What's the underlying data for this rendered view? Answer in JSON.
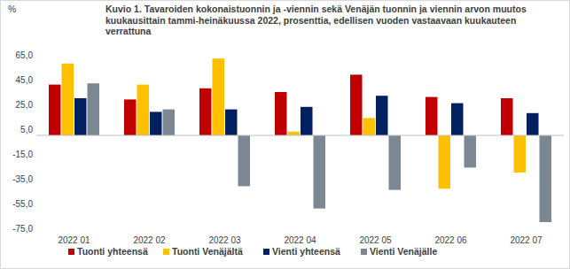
{
  "chart_data": {
    "type": "bar",
    "title": "Kuvio 1. Tavaroiden kokonaistuonnin ja -viennin sekä Venäjän tuonnin ja viennin arvon muutos kuukausittain tammi-heinäkuussa 2022, prosenttia, edellisen vuoden vastaavaan kuukauteen verrattuna",
    "y_label": "%",
    "categories": [
      "2022 01",
      "2022 02",
      "2022 03",
      "2022 04",
      "2022 05",
      "2022 06",
      "2022 07"
    ],
    "series": [
      {
        "name": "Tuonti yhteensä",
        "color": "#c00000",
        "values": [
          41,
          29,
          38,
          35,
          49,
          31,
          30
        ]
      },
      {
        "name": "Tuonti Venäjältä",
        "color": "#ffc000",
        "values": [
          58,
          41,
          62,
          3,
          14,
          -43,
          -30
        ]
      },
      {
        "name": "Vienti yhteensä",
        "color": "#002060",
        "values": [
          30,
          19,
          21,
          23,
          32,
          26,
          18
        ]
      },
      {
        "name": "Vienti Venäjälle",
        "color": "#7b8793",
        "values": [
          42,
          21,
          -41,
          -59,
          -44,
          -26,
          -70
        ]
      }
    ],
    "ylim": [
      -75,
      65
    ],
    "yticks": [
      {
        "value": 65,
        "label": "65,0"
      },
      {
        "value": 45,
        "label": "45,0"
      },
      {
        "value": 25,
        "label": "25,0"
      },
      {
        "value": 5,
        "label": "5,0"
      },
      {
        "value": -15,
        "label": "-15,0"
      },
      {
        "value": -35,
        "label": "-35,0"
      },
      {
        "value": -55,
        "label": "-55,0"
      },
      {
        "value": -75,
        "label": "-75,0"
      }
    ],
    "grid": false,
    "legend": "bottom"
  }
}
